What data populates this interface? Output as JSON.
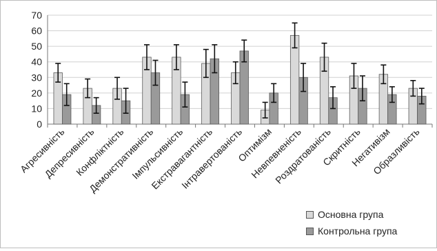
{
  "chart_data": {
    "type": "bar",
    "ylim": [
      0,
      70
    ],
    "yticks": [
      0,
      10,
      20,
      30,
      40,
      50,
      60,
      70
    ],
    "grid": true,
    "legend_position": "bottom-right",
    "categories": [
      "Агресивність",
      "Депресивність",
      "Конфліктність",
      "Демонстративність",
      "Імпульсивність",
      "Екстравагантність",
      "Інтравертованість",
      "Оптимізм",
      "Невпевненість",
      "Роздратованість",
      "Скритність",
      "Негативізм",
      "Образливість"
    ],
    "series": [
      {
        "name": "Основна група",
        "color": "#d9d9d9",
        "values": [
          33,
          23,
          23,
          43,
          43,
          39,
          33,
          9,
          57,
          43,
          31,
          32,
          23
        ],
        "errors": [
          6,
          6,
          7,
          8,
          8,
          9,
          7,
          5,
          8,
          9,
          8,
          6,
          5
        ]
      },
      {
        "name": "Контрольна група",
        "color": "#9a9a9a",
        "values": [
          19,
          12,
          15,
          33,
          19,
          42,
          47,
          20,
          30,
          17,
          23,
          19,
          18
        ],
        "errors": [
          7,
          5,
          8,
          8,
          8,
          9,
          7,
          6,
          9,
          7,
          8,
          5,
          5
        ]
      }
    ]
  }
}
